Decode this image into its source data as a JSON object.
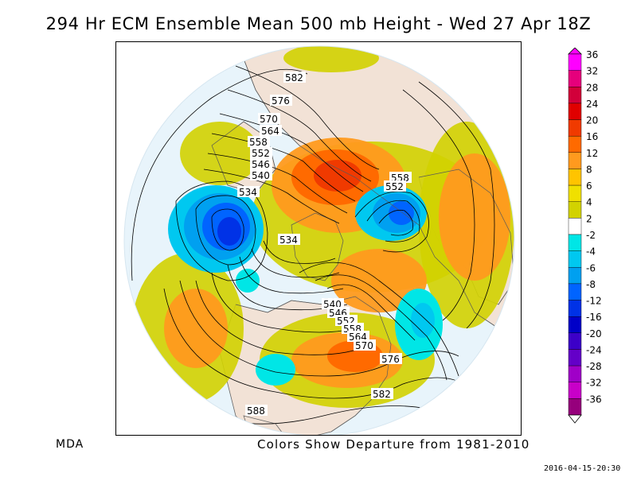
{
  "title": "294 Hr ECM Ensemble Mean 500 mb Height - Wed 27 Apr 18Z",
  "footer": {
    "source": "MDA",
    "caption": "Colors Show Departure from 1981-2010",
    "timestamp": "2016-04-15-20:30"
  },
  "colorbar": {
    "labels": [
      "36",
      "32",
      "28",
      "24",
      "20",
      "16",
      "12",
      "8",
      "6",
      "4",
      "2",
      "-2",
      "-4",
      "-6",
      "-8",
      "-12",
      "-16",
      "-20",
      "-24",
      "-28",
      "-32",
      "-36"
    ],
    "colors": [
      "#ff00ff",
      "#e6007c",
      "#d2003a",
      "#e00000",
      "#f03a00",
      "#ff6a00",
      "#ff9a1e",
      "#ffc400",
      "#f0e000",
      "#d2d200",
      "#ffffff",
      "#00e6e6",
      "#00c8f0",
      "#00a0f0",
      "#0064ff",
      "#0032e6",
      "#0000c8",
      "#3c00c8",
      "#6400c8",
      "#a000c8",
      "#c800c8",
      "#96007c"
    ]
  },
  "contour_labels": [
    "582",
    "576",
    "570",
    "564",
    "558",
    "552",
    "546",
    "540",
    "534",
    "534",
    "558",
    "552",
    "540",
    "546",
    "552",
    "558",
    "564",
    "570",
    "576",
    "582",
    "588"
  ],
  "colors": {
    "ocean_disk": "#e8f4fb",
    "land": "#f2e2d6",
    "coast": "#5a5a5a",
    "contour": "#000000"
  }
}
